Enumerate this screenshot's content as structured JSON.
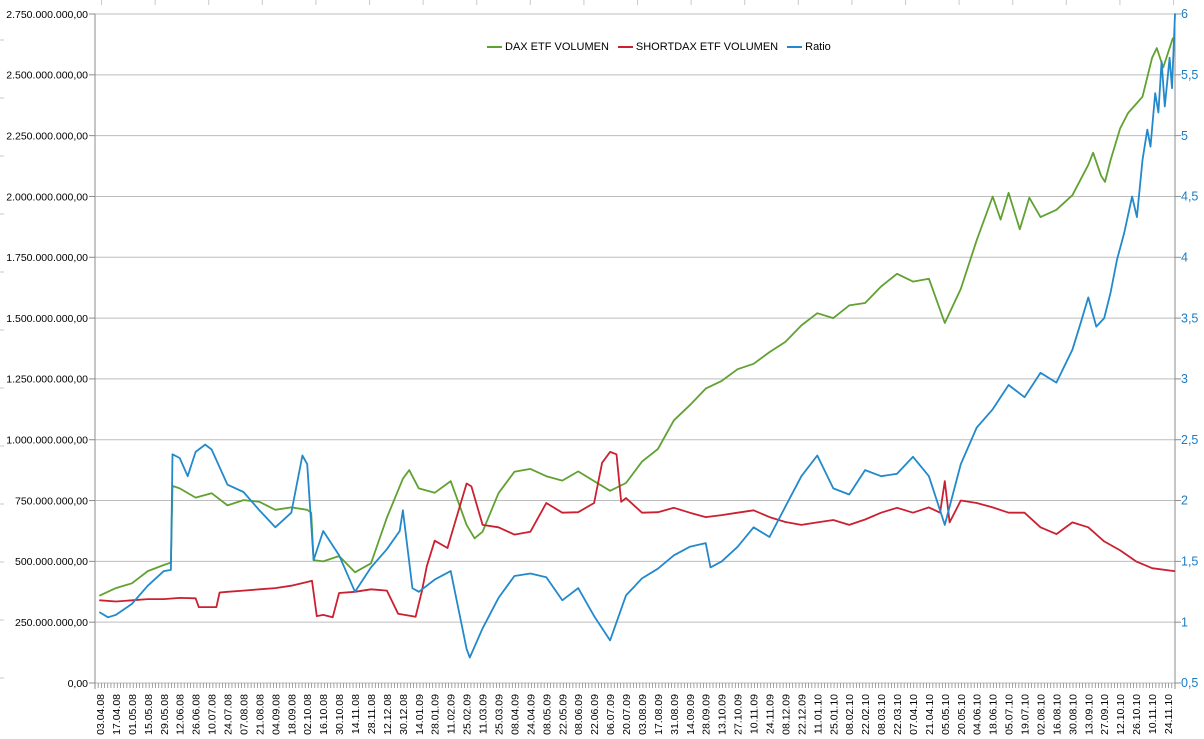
{
  "legend": {
    "items": [
      {
        "label": "DAX ETF VOLUMEN",
        "color": "#61a132"
      },
      {
        "label": "SHORTDAX ETF VOLUMEN",
        "color": "#cb2030"
      },
      {
        "label": "Ratio",
        "color": "#2289cc"
      }
    ]
  },
  "chart_data": {
    "type": "line",
    "title": "",
    "xlabel": "",
    "ylabel_left": "",
    "ylabel_right": "",
    "grid": true,
    "legend_position": "top-center",
    "left_axis": {
      "min": 0,
      "max": 2750000000,
      "step": 250000000,
      "number_format": "de-DE two decimals",
      "tick_labels_top_to_bottom": [
        "2.750.000.000,00",
        "2.500.000.000,00",
        "2.250.000.000,00",
        "2.000.000.000,00",
        "1.750.000.000,00",
        "1.500.000.000,00",
        "1.250.000.000,00",
        "1.000.000.000,00",
        "750.000.000,00",
        "500.000.000,00",
        "250.000.000,00",
        "0,00"
      ],
      "text_color": "#000000"
    },
    "right_axis": {
      "min": 0.5,
      "max": 6,
      "step": 0.5,
      "tick_labels_top_to_bottom": [
        "6",
        "5,5",
        "5",
        "4,5",
        "4",
        "3,5",
        "3",
        "2,5",
        "2",
        "1,5",
        "1",
        "0,5"
      ],
      "text_color": "#1b7cc4"
    },
    "x_labels": [
      "03.04.08",
      "17.04.08",
      "01.05.08",
      "15.05.08",
      "29.05.08",
      "12.06.08",
      "26.06.08",
      "10.07.08",
      "24.07.08",
      "07.08.08",
      "21.08.08",
      "04.09.08",
      "18.09.08",
      "02.10.08",
      "16.10.08",
      "30.10.08",
      "14.11.08",
      "28.11.08",
      "12.12.08",
      "30.12.08",
      "14.01.09",
      "28.01.09",
      "11.02.09",
      "25.02.09",
      "11.03.09",
      "25.03.09",
      "08.04.09",
      "24.04.09",
      "08.05.09",
      "22.05.09",
      "08.06.09",
      "22.06.09",
      "06.07.09",
      "20.07.09",
      "03.08.09",
      "17.08.09",
      "31.08.09",
      "14.09.09",
      "28.09.09",
      "13.10.09",
      "27.10.09",
      "10.11.09",
      "24.11.09",
      "08.12.09",
      "22.12.09",
      "11.01.10",
      "25.01.10",
      "08.02.10",
      "22.02.10",
      "08.03.10",
      "22.03.10",
      "07.04.10",
      "21.04.10",
      "05.05.10",
      "20.05.10",
      "04.06.10",
      "18.06.10",
      "05.07.10",
      "19.07.10",
      "02.08.10",
      "16.08.10",
      "30.08.10",
      "13.09.10",
      "27.09.10",
      "12.10.10",
      "26.10.10",
      "10.11.10",
      "24.11.10"
    ],
    "series": [
      {
        "name": "DAX ETF VOLUMEN",
        "axis": "left",
        "color": "#61a132",
        "unit": "value in millions, x = fractional index into x_labels",
        "points": [
          [
            0,
            360
          ],
          [
            1,
            390
          ],
          [
            2,
            410
          ],
          [
            3,
            460
          ],
          [
            4,
            485
          ],
          [
            4.45,
            495
          ],
          [
            4.55,
            810
          ],
          [
            5,
            800
          ],
          [
            6,
            762
          ],
          [
            7,
            780
          ],
          [
            8,
            730
          ],
          [
            9,
            752
          ],
          [
            10,
            745
          ],
          [
            11,
            712
          ],
          [
            12,
            722
          ],
          [
            13,
            712
          ],
          [
            13.25,
            700
          ],
          [
            13.4,
            505
          ],
          [
            14,
            500
          ],
          [
            15,
            522
          ],
          [
            16,
            455
          ],
          [
            17,
            492
          ],
          [
            18,
            680
          ],
          [
            19,
            840
          ],
          [
            19.4,
            875
          ],
          [
            20,
            800
          ],
          [
            21,
            782
          ],
          [
            22,
            830
          ],
          [
            23,
            650
          ],
          [
            23.5,
            595
          ],
          [
            24,
            622
          ],
          [
            25,
            780
          ],
          [
            26,
            868
          ],
          [
            27,
            880
          ],
          [
            28,
            850
          ],
          [
            29,
            832
          ],
          [
            30,
            870
          ],
          [
            31,
            830
          ],
          [
            32,
            790
          ],
          [
            33,
            822
          ],
          [
            34,
            910
          ],
          [
            35,
            962
          ],
          [
            36,
            1080
          ],
          [
            37,
            1142
          ],
          [
            38,
            1210
          ],
          [
            39,
            1242
          ],
          [
            40,
            1290
          ],
          [
            41,
            1312
          ],
          [
            42,
            1360
          ],
          [
            43,
            1402
          ],
          [
            44,
            1470
          ],
          [
            45,
            1520
          ],
          [
            46,
            1500
          ],
          [
            47,
            1552
          ],
          [
            48,
            1562
          ],
          [
            49,
            1630
          ],
          [
            50,
            1682
          ],
          [
            51,
            1650
          ],
          [
            52,
            1662
          ],
          [
            53,
            1480
          ],
          [
            54,
            1620
          ],
          [
            55,
            1820
          ],
          [
            56,
            2000
          ],
          [
            56.5,
            1905
          ],
          [
            57,
            2015
          ],
          [
            57.7,
            1865
          ],
          [
            58.3,
            1995
          ],
          [
            59,
            1915
          ],
          [
            60,
            1945
          ],
          [
            61,
            2005
          ],
          [
            62,
            2130
          ],
          [
            62.3,
            2180
          ],
          [
            62.8,
            2085
          ],
          [
            63.05,
            2060
          ],
          [
            63.4,
            2150
          ],
          [
            64,
            2280
          ],
          [
            64.5,
            2343
          ],
          [
            65,
            2380
          ],
          [
            65.4,
            2410
          ],
          [
            66,
            2570
          ],
          [
            66.3,
            2610
          ],
          [
            66.7,
            2530
          ],
          [
            67.3,
            2650
          ]
        ]
      },
      {
        "name": "SHORTDAX ETF VOLUMEN",
        "axis": "left",
        "color": "#cb2030",
        "unit": "value in millions, x = fractional index into x_labels",
        "points": [
          [
            0,
            340
          ],
          [
            1,
            335
          ],
          [
            2,
            340
          ],
          [
            3,
            345
          ],
          [
            4,
            345
          ],
          [
            5,
            350
          ],
          [
            6,
            348
          ],
          [
            6.2,
            312
          ],
          [
            7.3,
            312
          ],
          [
            7.5,
            372
          ],
          [
            8,
            375
          ],
          [
            9,
            380
          ],
          [
            10,
            385
          ],
          [
            11,
            390
          ],
          [
            12,
            400
          ],
          [
            13,
            415
          ],
          [
            13.3,
            420
          ],
          [
            13.6,
            275
          ],
          [
            14,
            280
          ],
          [
            14.6,
            270
          ],
          [
            15,
            370
          ],
          [
            16,
            375
          ],
          [
            17,
            385
          ],
          [
            18,
            380
          ],
          [
            18.7,
            285
          ],
          [
            19.8,
            272
          ],
          [
            20.2,
            380
          ],
          [
            20.5,
            480
          ],
          [
            21,
            585
          ],
          [
            21.8,
            555
          ],
          [
            22,
            600
          ],
          [
            23,
            820
          ],
          [
            23.3,
            808
          ],
          [
            24,
            650
          ],
          [
            25,
            640
          ],
          [
            26,
            610
          ],
          [
            27,
            622
          ],
          [
            28,
            740
          ],
          [
            29,
            700
          ],
          [
            30,
            702
          ],
          [
            31,
            740
          ],
          [
            31.5,
            905
          ],
          [
            32,
            950
          ],
          [
            32.4,
            940
          ],
          [
            32.7,
            745
          ],
          [
            33,
            760
          ],
          [
            34,
            700
          ],
          [
            35,
            702
          ],
          [
            36,
            720
          ],
          [
            37,
            700
          ],
          [
            38,
            682
          ],
          [
            39,
            690
          ],
          [
            40,
            700
          ],
          [
            41,
            710
          ],
          [
            42,
            682
          ],
          [
            43,
            662
          ],
          [
            44,
            650
          ],
          [
            45,
            660
          ],
          [
            46,
            670
          ],
          [
            47,
            650
          ],
          [
            48,
            672
          ],
          [
            49,
            700
          ],
          [
            50,
            720
          ],
          [
            51,
            700
          ],
          [
            52,
            722
          ],
          [
            52.7,
            700
          ],
          [
            53,
            830
          ],
          [
            53.3,
            660
          ],
          [
            54,
            750
          ],
          [
            55,
            740
          ],
          [
            56,
            722
          ],
          [
            57,
            700
          ],
          [
            58,
            700
          ],
          [
            59,
            640
          ],
          [
            60,
            612
          ],
          [
            61,
            660
          ],
          [
            62,
            640
          ],
          [
            63,
            582
          ],
          [
            64,
            545
          ],
          [
            65,
            500
          ],
          [
            66,
            472
          ],
          [
            67.4,
            460
          ]
        ]
      },
      {
        "name": "Ratio",
        "axis": "right",
        "color": "#2289cc",
        "unit": "ratio, x = fractional index into x_labels",
        "points": [
          [
            0,
            1.08
          ],
          [
            0.5,
            1.04
          ],
          [
            1,
            1.06
          ],
          [
            2,
            1.15
          ],
          [
            3,
            1.3
          ],
          [
            4,
            1.42
          ],
          [
            4.45,
            1.43
          ],
          [
            4.55,
            2.38
          ],
          [
            5,
            2.35
          ],
          [
            5.5,
            2.2
          ],
          [
            6,
            2.4
          ],
          [
            6.6,
            2.46
          ],
          [
            7,
            2.42
          ],
          [
            8,
            2.13
          ],
          [
            9,
            2.07
          ],
          [
            10,
            1.92
          ],
          [
            11,
            1.78
          ],
          [
            12,
            1.9
          ],
          [
            12.7,
            2.37
          ],
          [
            13,
            2.3
          ],
          [
            13.4,
            1.51
          ],
          [
            14,
            1.75
          ],
          [
            15,
            1.55
          ],
          [
            16,
            1.25
          ],
          [
            17,
            1.45
          ],
          [
            18,
            1.6
          ],
          [
            18.8,
            1.75
          ],
          [
            19,
            1.92
          ],
          [
            19.6,
            1.28
          ],
          [
            20,
            1.25
          ],
          [
            21,
            1.35
          ],
          [
            22,
            1.42
          ],
          [
            23,
            0.78
          ],
          [
            23.2,
            0.71
          ],
          [
            24,
            0.95
          ],
          [
            25,
            1.2
          ],
          [
            26,
            1.38
          ],
          [
            27,
            1.4
          ],
          [
            28,
            1.37
          ],
          [
            29,
            1.18
          ],
          [
            30,
            1.28
          ],
          [
            31,
            1.05
          ],
          [
            32,
            0.85
          ],
          [
            33,
            1.22
          ],
          [
            34,
            1.36
          ],
          [
            35,
            1.44
          ],
          [
            36,
            1.55
          ],
          [
            37,
            1.62
          ],
          [
            38,
            1.65
          ],
          [
            38.3,
            1.45
          ],
          [
            39,
            1.5
          ],
          [
            40,
            1.62
          ],
          [
            41,
            1.78
          ],
          [
            42,
            1.7
          ],
          [
            43,
            1.95
          ],
          [
            44,
            2.2
          ],
          [
            45,
            2.37
          ],
          [
            46,
            2.1
          ],
          [
            47,
            2.05
          ],
          [
            48,
            2.25
          ],
          [
            49,
            2.2
          ],
          [
            50,
            2.22
          ],
          [
            51,
            2.36
          ],
          [
            52,
            2.2
          ],
          [
            53,
            1.8
          ],
          [
            54,
            2.3
          ],
          [
            55,
            2.6
          ],
          [
            56,
            2.75
          ],
          [
            57,
            2.95
          ],
          [
            58,
            2.85
          ],
          [
            59,
            3.05
          ],
          [
            60,
            2.97
          ],
          [
            61,
            3.24
          ],
          [
            61.5,
            3.45
          ],
          [
            62,
            3.67
          ],
          [
            62.5,
            3.43
          ],
          [
            63,
            3.5
          ],
          [
            63.4,
            3.71
          ],
          [
            63.8,
            3.98
          ],
          [
            64.25,
            4.2
          ],
          [
            64.75,
            4.5
          ],
          [
            65.05,
            4.33
          ],
          [
            65.4,
            4.8
          ],
          [
            65.7,
            5.05
          ],
          [
            65.9,
            4.91
          ],
          [
            66.2,
            5.35
          ],
          [
            66.4,
            5.19
          ],
          [
            66.6,
            5.61
          ],
          [
            66.8,
            5.24
          ],
          [
            67.1,
            5.64
          ],
          [
            67.25,
            5.39
          ],
          [
            67.45,
            6.0
          ]
        ]
      }
    ],
    "colors": {
      "background": "#ffffff",
      "gridline": "#bdbdbd",
      "axis_line": "#8c8c8c",
      "tick_comb": "#8a8a8a",
      "edge_artifact_ticks": "#c9c9c9"
    }
  }
}
